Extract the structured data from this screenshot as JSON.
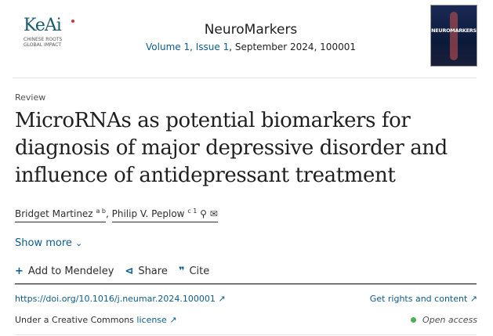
{
  "publisher": {
    "logo_text": "KeAi",
    "tagline_1": "CHINESE ROOTS",
    "tagline_2": "GLOBAL IMPACT"
  },
  "journal": {
    "title": "NeuroMarkers",
    "volume": "Volume 1",
    "issue": "Issue 1",
    "rest": ", September 2024, 100001",
    "cover_text": "NEUROMARKERS"
  },
  "article": {
    "type": "Review",
    "title": "MicroRNAs as potential biomarkers for diagnosis of major depressive disorder and influence of antidepressant treatment",
    "authors": [
      {
        "name": "Bridget Martinez",
        "sup": "a b"
      },
      {
        "name": "Philip V. Peplow",
        "sup": "c 1"
      }
    ]
  },
  "show_more": "Show more",
  "actions": {
    "mendeley": "Add to Mendeley",
    "share": "Share",
    "cite": "Cite"
  },
  "doi": "https://doi.org/10.1016/j.neumar.2024.100001",
  "rights": "Get rights and content",
  "license_prefix": "Under a Creative Commons ",
  "license_link": "license",
  "open_access": "Open access",
  "colors": {
    "link": "#0c5c8c",
    "open_access_dot": "#4caf50"
  }
}
